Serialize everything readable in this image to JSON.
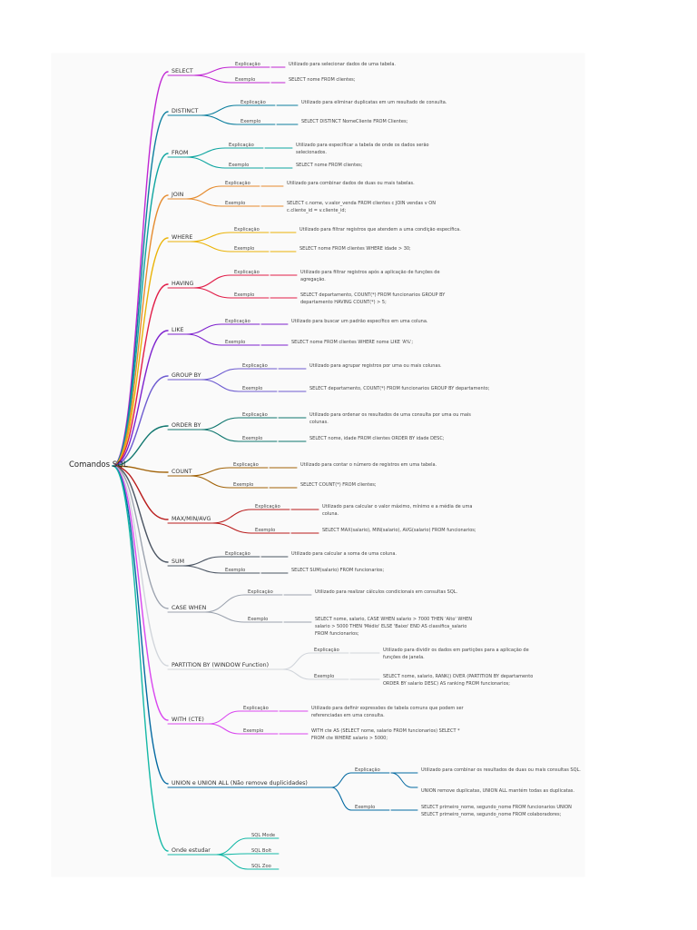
{
  "root": "Comandos SQL",
  "branches": [
    {
      "key": "select",
      "label": "SELECT",
      "color": "#c026d3",
      "leaves": [
        {
          "k": "Explicação",
          "v": "Utilizado para selecionar dados de uma tabela."
        },
        {
          "k": "Exemplo",
          "v": "SELECT nome FROM clientes;"
        }
      ]
    },
    {
      "key": "distinct",
      "label": "DISTINCT",
      "color": "#0d7f9e",
      "leaves": [
        {
          "k": "Explicação",
          "v": "Utilizado para eliminar duplicatas em um resultado de consulta."
        },
        {
          "k": "Exemplo",
          "v": "SELECT DISTINCT NomeCliente FROM Clientes;"
        }
      ]
    },
    {
      "key": "from",
      "label": "FROM",
      "color": "#0ea5a0",
      "leaves": [
        {
          "k": "Explicação",
          "v": "Utilizado para especificar a tabela de onde os dados serão selecionados."
        },
        {
          "k": "Exemplo",
          "v": "SELECT nome FROM clientes;"
        }
      ]
    },
    {
      "key": "join",
      "label": "JOIN",
      "color": "#e58b2e",
      "leaves": [
        {
          "k": "Explicação",
          "v": "Utilizado para combinar dados de duas ou mais tabelas."
        },
        {
          "k": "Exemplo",
          "v": "SELECT c.nome, v.valor_venda FROM clientes c JOIN vendas v ON c.cliente_id = v.cliente_id;"
        }
      ]
    },
    {
      "key": "where",
      "label": "WHERE",
      "color": "#eab308",
      "leaves": [
        {
          "k": "Explicação",
          "v": "Utilizado para filtrar registros que atendem a uma condição específica."
        },
        {
          "k": "Exemplo",
          "v": "SELECT nome FROM clientes WHERE idade > 30;"
        }
      ]
    },
    {
      "key": "having",
      "label": "HAVING",
      "color": "#e11d48",
      "leaves": [
        {
          "k": "Explicação",
          "v": "Utilizado para filtrar registros após a aplicação de funções de agregação."
        },
        {
          "k": "Exemplo",
          "v": "SELECT departamento, COUNT(*) FROM funcionarios GROUP BY departamento HAVING COUNT(*) > 5;"
        }
      ]
    },
    {
      "key": "like",
      "label": "LIKE",
      "color": "#7e22ce",
      "leaves": [
        {
          "k": "Explicação",
          "v": "Utilizado para buscar um padrão específico em uma coluna."
        },
        {
          "k": "Exemplo",
          "v": "SELECT nome FROM clientes WHERE nome LIKE 'A%';"
        }
      ]
    },
    {
      "key": "groupby",
      "label": "GROUP BY",
      "color": "#6d5bd0",
      "leaves": [
        {
          "k": "Explicação",
          "v": "Utilizado para agrupar registros por uma ou mais colunas."
        },
        {
          "k": "Exemplo",
          "v": "SELECT departamento, COUNT(*) FROM funcionarios GROUP BY departamento;"
        }
      ]
    },
    {
      "key": "orderby",
      "label": "ORDER BY",
      "color": "#0f766e",
      "leaves": [
        {
          "k": "Explicação",
          "v": "Utilizado para ordenar os resultados de uma consulta por uma ou mais colunas."
        },
        {
          "k": "Exemplo",
          "v": "SELECT nome, idade FROM clientes ORDER BY idade DESC;"
        }
      ]
    },
    {
      "key": "count",
      "label": "COUNT",
      "color": "#a16207",
      "leaves": [
        {
          "k": "Explicação",
          "v": "Utilizado para contar o número de registros em uma tabela."
        },
        {
          "k": "Exemplo",
          "v": "SELECT COUNT(*) FROM clientes;"
        }
      ]
    },
    {
      "key": "maxminavg",
      "label": "MAX/MIN/AVG",
      "color": "#b91c1c",
      "leaves": [
        {
          "k": "Explicação",
          "v": "Utilizado para calcular o valor máximo, mínimo e a média de uma coluna."
        },
        {
          "k": "Exemplo",
          "v": "SELECT MAX(salario), MIN(salario), AVG(salario) FROM funcionarios;"
        }
      ]
    },
    {
      "key": "sum",
      "label": "SUM",
      "color": "#4b5563",
      "leaves": [
        {
          "k": "Explicação",
          "v": "Utilizado para calcular a soma de uma coluna."
        },
        {
          "k": "Exemplo",
          "v": "SELECT SUM(salario) FROM funcionarios;"
        }
      ]
    },
    {
      "key": "casewhen",
      "label": "CASE WHEN",
      "color": "#9ca3af",
      "leaves": [
        {
          "k": "Explicação",
          "v": "Utilizado para realizar cálculos condicionais em consultas SQL."
        },
        {
          "k": "Exemplo",
          "v": "SELECT nome, salario, CASE WHEN salario > 7000 THEN 'Alto' WHEN salario > 5000 THEN 'Médio' ELSE 'Baixo' END AS classifica_salario FROM funcionarios;"
        }
      ]
    },
    {
      "key": "partitionby",
      "label": "PARTITION BY (WINDOW Function)",
      "color": "#d1d5db",
      "leaves": [
        {
          "k": "Explicação",
          "v": "Utilizado para dividir os dados em partições para a aplicação de funções de janela."
        },
        {
          "k": "Exemplo",
          "v": "SELECT nome, salario, RANK() OVER (PARTITION BY departamento ORDER BY salario DESC) AS ranking FROM funcionarios;"
        }
      ]
    },
    {
      "key": "withcte",
      "label": "WITH (CTE)",
      "color": "#d946ef",
      "leaves": [
        {
          "k": "Explicação",
          "v": "Utilizado para definir expressões de tabela comuns que podem ser referenciadas em uma consulta."
        },
        {
          "k": "Exemplo",
          "v": "WITH cte AS (SELECT nome, salario FROM funcionarios) SELECT * FROM cte WHERE salario > 5000;"
        }
      ]
    },
    {
      "key": "union",
      "label": "UNION e UNION ALL (Não remove duplicidades)",
      "color": "#0369a1",
      "leaves": [
        {
          "k": "Explicação",
          "v": "Utilizado para combinar os resultados de duas ou mais consultas SQL.",
          "v2": "UNION remove duplicatas, UNION ALL mantém todas as duplicatas."
        },
        {
          "k": "Exemplo",
          "v": "SELECT primeiro_nome, segundo_nome FROM funcionarios UNION SELECT primeiro_nome, segundo_nome FROM colaboradores;"
        }
      ]
    },
    {
      "key": "estudar",
      "label": "Onde estudar",
      "color": "#14b8a6",
      "leaves": [
        {
          "v": "SQL Mode"
        },
        {
          "v": "SQL Bolt"
        },
        {
          "v": "SQL Zoo"
        }
      ]
    }
  ]
}
